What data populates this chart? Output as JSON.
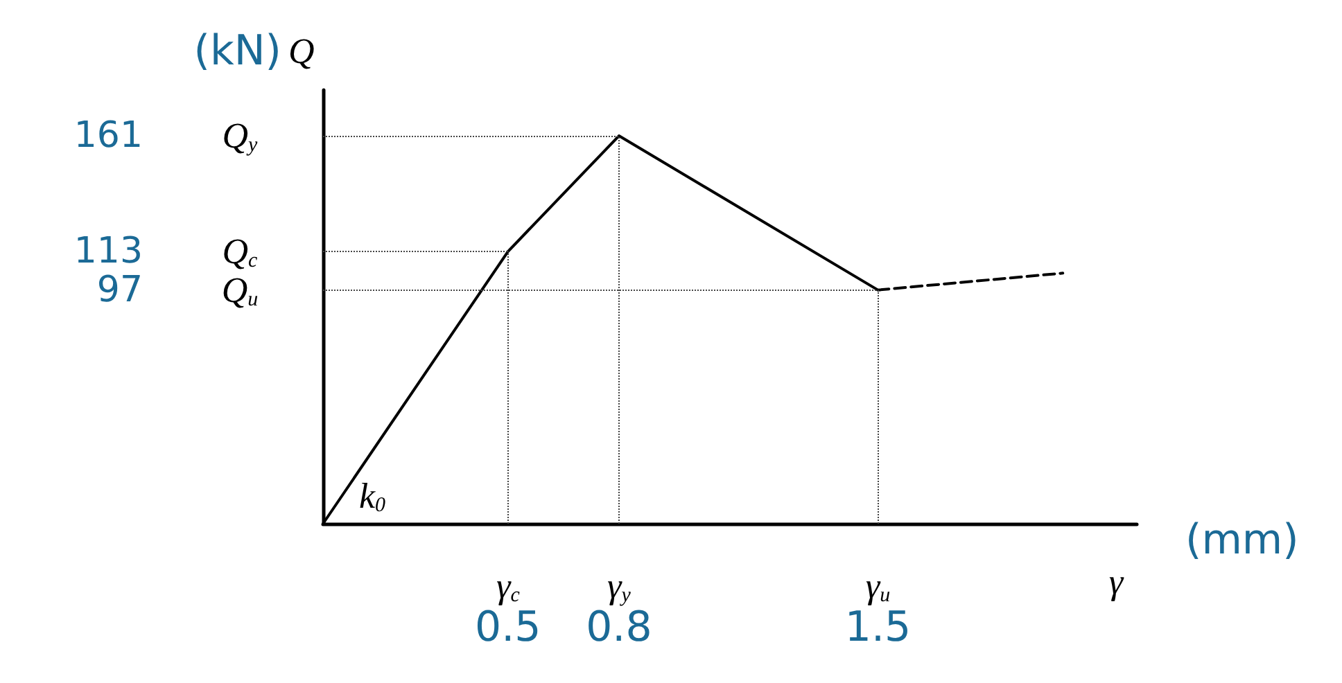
{
  "chart_data": {
    "type": "line",
    "xlabel": "γ",
    "ylabel": "(kN) Q",
    "x2label": "(mm)",
    "series": [
      {
        "x": [
          0,
          0.5,
          0.8,
          1.5
        ],
        "values": [
          0,
          113,
          161,
          97
        ],
        "color": "#000000",
        "line_style": "solid"
      },
      {
        "x": [
          1.5,
          2.0
        ],
        "values": [
          97,
          104
        ],
        "color": "#000000",
        "line_style": "dashed"
      }
    ],
    "xlim": [
      0,
      2.2
    ],
    "xticks": [
      0.5,
      0.8,
      1.5
    ],
    "ylim": [
      0,
      180
    ],
    "yticks": [
      97,
      113,
      161
    ],
    "grid": false,
    "marker": "none",
    "ref_lines": [
      {
        "axis": "x",
        "value": 0.5
      },
      {
        "axis": "x",
        "value": 0.8
      },
      {
        "axis": "x",
        "value": 1.5
      },
      {
        "axis": "y",
        "value": 113
      },
      {
        "axis": "y",
        "value": 161
      },
      {
        "axis": "y",
        "value": 97
      }
    ],
    "annotations": [
      {
        "text": "Q$_{y}$",
        "x": 0,
        "y": 161
      },
      {
        "text": "Q$_{c}$",
        "x": 0,
        "y": 113
      },
      {
        "text": "Q$_{u}$",
        "x": 0,
        "y": 97
      },
      {
        "text": "γ$_{c}$",
        "x": 0.5,
        "y": 0
      },
      {
        "text": "γ$_{y}$",
        "x": 0.8,
        "y": 0
      },
      {
        "text": "γ$_{u}$",
        "x": 1.5,
        "y": 0
      },
      "k$_{0}$"
    ]
  }
}
